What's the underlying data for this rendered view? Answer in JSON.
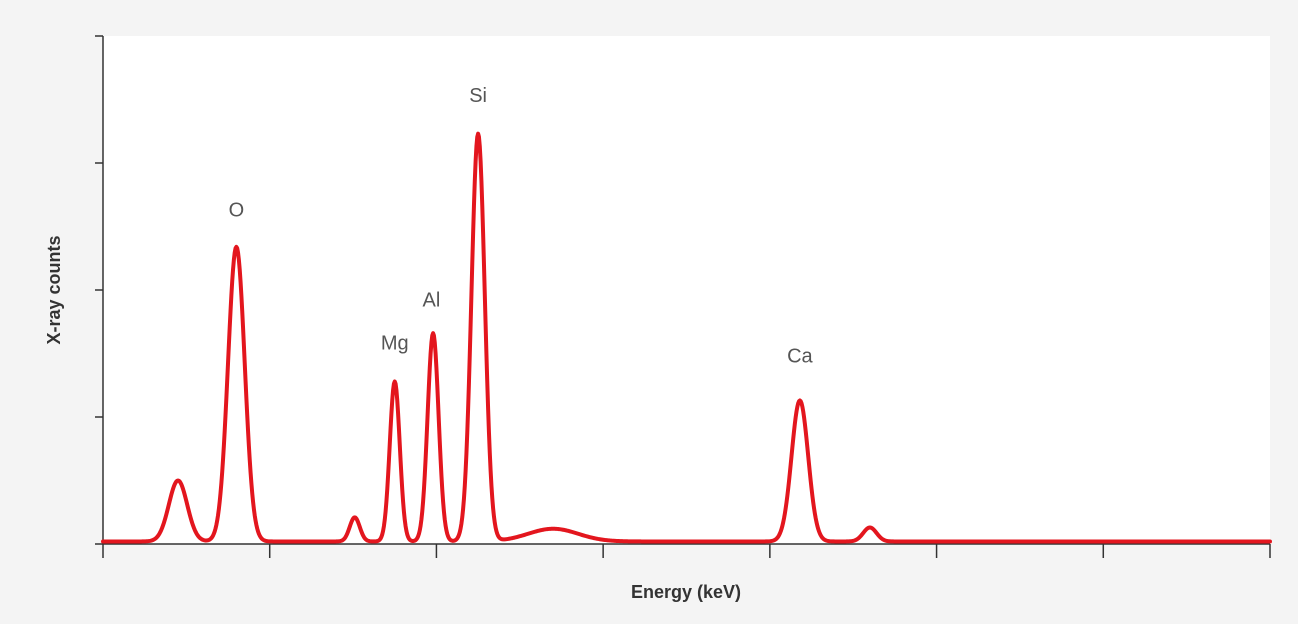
{
  "chart_data": {
    "type": "line",
    "title": "",
    "xlabel": "Energy (keV)",
    "ylabel": "X-ray counts",
    "xlim": [
      0,
      7
    ],
    "ylim": [
      0,
      400
    ],
    "x_major_ticks": [
      0,
      1,
      2,
      3,
      4,
      5,
      6,
      7
    ],
    "y_major_ticks": [
      0,
      100,
      200,
      300,
      400
    ],
    "tick_labels_shown": false,
    "grid": false,
    "legend": "none",
    "colors": {
      "background": "#f4f4f4",
      "plot_background": "#ffffff",
      "line": "#e3161e",
      "axis": "#333333",
      "label": "#555555"
    },
    "series": [
      {
        "values_description_free": true,
        "peaks": [
          {
            "label": "",
            "center": 0.45,
            "height": 48,
            "sigma": 0.055
          },
          {
            "label": "O",
            "center": 0.8,
            "height": 232,
            "sigma": 0.05
          },
          {
            "label": "",
            "center": 1.51,
            "height": 19,
            "sigma": 0.03
          },
          {
            "label": "Mg",
            "center": 1.75,
            "height": 126,
            "sigma": 0.03
          },
          {
            "label": "Al",
            "center": 1.98,
            "height": 164,
            "sigma": 0.033
          },
          {
            "label": "Si",
            "center": 2.25,
            "height": 321,
            "sigma": 0.04
          },
          {
            "label": "",
            "center": 2.7,
            "height": 10,
            "sigma": 0.15
          },
          {
            "label": "Ca",
            "center": 4.18,
            "height": 111,
            "sigma": 0.05
          },
          {
            "label": "",
            "center": 4.6,
            "height": 11,
            "sigma": 0.04
          }
        ]
      }
    ],
    "annotations": [
      {
        "text": "O",
        "x": 0.8,
        "y": 258
      },
      {
        "text": "Mg",
        "x": 1.75,
        "y": 153
      },
      {
        "text": "Al",
        "x": 1.97,
        "y": 187
      },
      {
        "text": "Si",
        "x": 2.25,
        "y": 348
      },
      {
        "text": "Ca",
        "x": 4.18,
        "y": 143
      }
    ]
  }
}
